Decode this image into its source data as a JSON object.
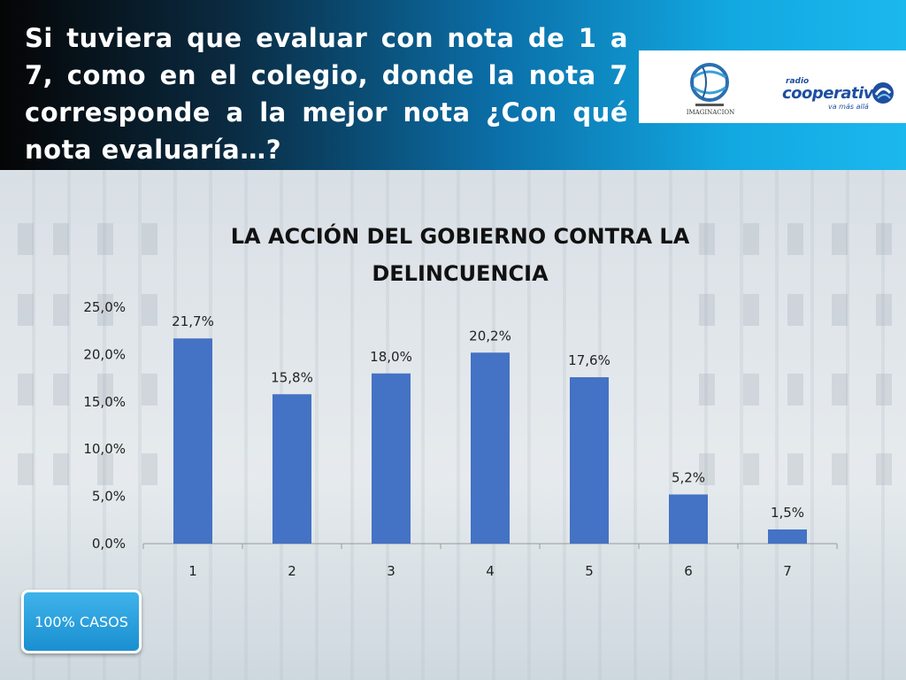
{
  "header": {
    "question": "Si tuviera que evaluar con nota de 1 a 7, como en el colegio, donde la nota 7 corresponde a la mejor nota ¿Con qué nota evaluaría…?"
  },
  "logos": {
    "imaginacion": "IMAGINACION",
    "cooperativa_small": "radio",
    "cooperativa_name": "cooperativa",
    "cooperativa_tagline": "va más allá"
  },
  "chart_data": {
    "type": "bar",
    "title": "LA ACCIÓN DEL GOBIERNO CONTRA LA DELINCUENCIA",
    "categories": [
      "1",
      "2",
      "3",
      "4",
      "5",
      "6",
      "7"
    ],
    "values": [
      21.7,
      15.8,
      18.0,
      20.2,
      17.6,
      5.2,
      1.5
    ],
    "data_labels": [
      "21,7%",
      "15,8%",
      "18,0%",
      "20,2%",
      "17,6%",
      "5,2%",
      "1,5%"
    ],
    "ylim": [
      0,
      25
    ],
    "yticks": [
      "0,0%",
      "5,0%",
      "10,0%",
      "15,0%",
      "20,0%",
      "25,0%"
    ],
    "ytick_values": [
      0,
      5,
      10,
      15,
      20,
      25
    ],
    "bar_color": "#4472c4",
    "grid": false,
    "legend": "none"
  },
  "badge": {
    "label": "100% CASOS"
  }
}
